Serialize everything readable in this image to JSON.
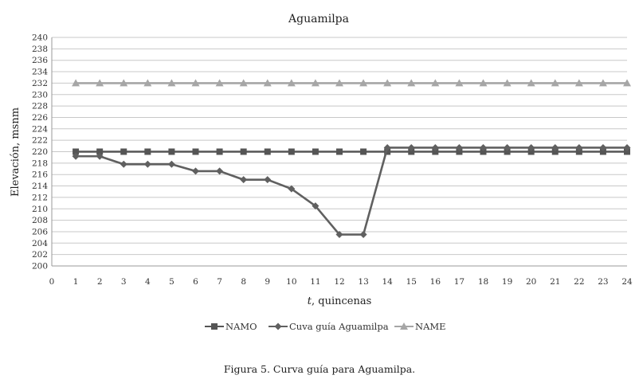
{
  "chart_data": {
    "type": "line",
    "title": "Aguamilpa",
    "xlabel_italic": "t",
    "xlabel_rest": ", quincenas",
    "ylabel": "Elevación, msnm",
    "xlim": [
      0,
      24
    ],
    "ylim": [
      200,
      240
    ],
    "x_ticks": [
      0,
      1,
      2,
      3,
      4,
      5,
      6,
      7,
      8,
      9,
      10,
      11,
      12,
      13,
      14,
      15,
      16,
      17,
      18,
      19,
      20,
      21,
      22,
      23,
      24
    ],
    "y_ticks": [
      200,
      202,
      204,
      206,
      208,
      210,
      212,
      214,
      216,
      218,
      220,
      222,
      224,
      226,
      228,
      230,
      232,
      234,
      236,
      238,
      240
    ],
    "grid": "horizontal",
    "legend_position": "bottom",
    "series": [
      {
        "name": "NAMO",
        "color": "#555555",
        "marker": "square",
        "x": [
          1,
          2,
          3,
          4,
          5,
          6,
          7,
          8,
          9,
          10,
          11,
          12,
          13,
          14,
          15,
          16,
          17,
          18,
          19,
          20,
          21,
          22,
          23,
          24
        ],
        "values": [
          220,
          220,
          220,
          220,
          220,
          220,
          220,
          220,
          220,
          220,
          220,
          220,
          220,
          220,
          220,
          220,
          220,
          220,
          220,
          220,
          220,
          220,
          220,
          220
        ]
      },
      {
        "name": "Cuva guía Aguamilpa",
        "color": "#606060",
        "marker": "diamond",
        "x": [
          1,
          2,
          3,
          4,
          5,
          6,
          7,
          8,
          9,
          10,
          11,
          12,
          13,
          14,
          15,
          16,
          17,
          18,
          19,
          20,
          21,
          22,
          23,
          24
        ],
        "values": [
          219.2,
          219.2,
          217.8,
          217.8,
          217.8,
          216.6,
          216.6,
          215.1,
          215.1,
          213.5,
          210.5,
          205.5,
          205.5,
          220.7,
          220.7,
          220.7,
          220.7,
          220.7,
          220.7,
          220.7,
          220.7,
          220.7,
          220.7,
          220.7
        ]
      },
      {
        "name": "NAME",
        "color": "#a6a6a6",
        "marker": "triangle",
        "x": [
          1,
          2,
          3,
          4,
          5,
          6,
          7,
          8,
          9,
          10,
          11,
          12,
          13,
          14,
          15,
          16,
          17,
          18,
          19,
          20,
          21,
          22,
          23,
          24
        ],
        "values": [
          232,
          232,
          232,
          232,
          232,
          232,
          232,
          232,
          232,
          232,
          232,
          232,
          232,
          232,
          232,
          232,
          232,
          232,
          232,
          232,
          232,
          232,
          232,
          232
        ]
      }
    ]
  },
  "caption": "Figura 5. Curva guía para Aguamilpa."
}
